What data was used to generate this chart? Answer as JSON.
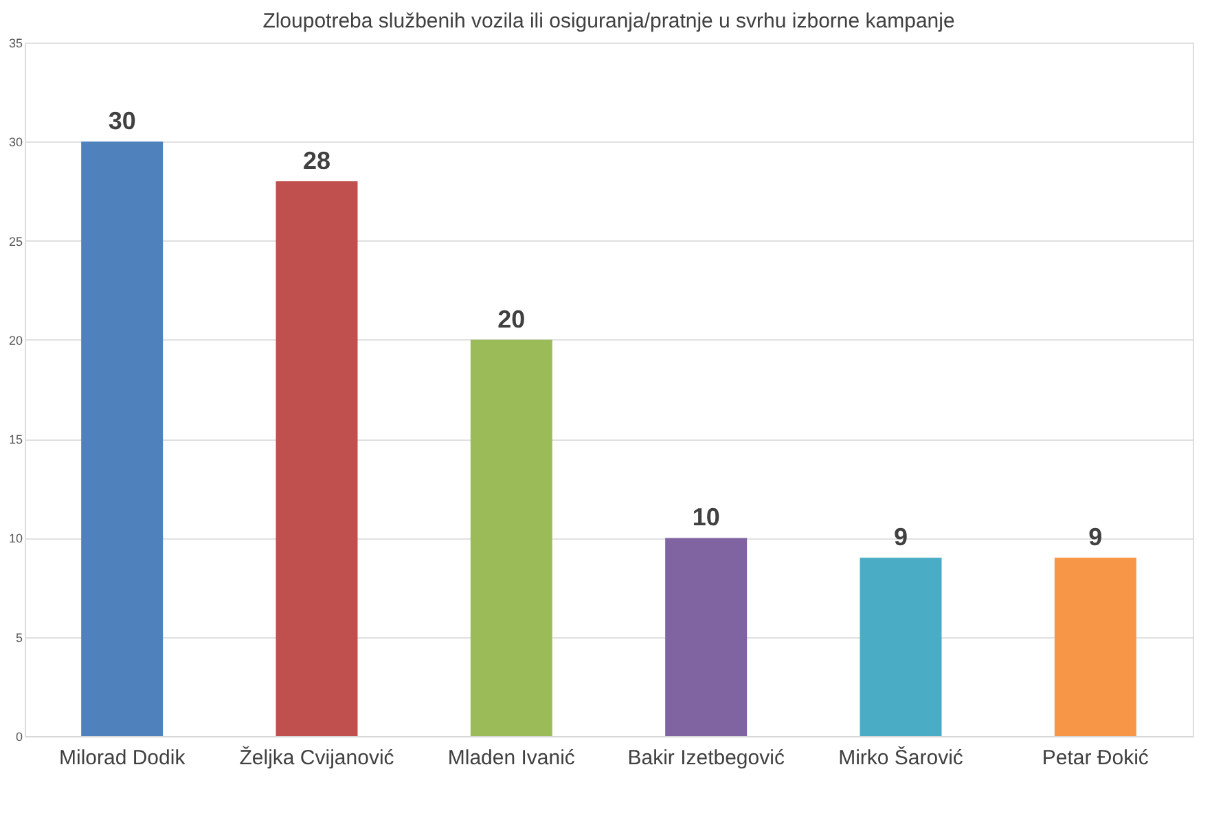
{
  "chart_data": {
    "type": "bar",
    "title": "Zloupotreba službenih vozila ili osiguranja/pratnje u svrhu izborne kampanje",
    "categories": [
      "Milorad Dodik",
      "Željka Cvijanović",
      "Mladen Ivanić",
      "Bakir Izetbegović",
      "Mirko Šarović",
      "Petar Đokić"
    ],
    "values": [
      30,
      28,
      20,
      10,
      9,
      9
    ],
    "colors": [
      "#4f81bd",
      "#c0504d",
      "#9bbb59",
      "#8064a2",
      "#4bacc6",
      "#f79646"
    ],
    "ylim": [
      0,
      35
    ],
    "yticks": [
      0,
      5,
      10,
      15,
      20,
      25,
      30,
      35
    ],
    "grid": "y",
    "data_labels": true
  }
}
